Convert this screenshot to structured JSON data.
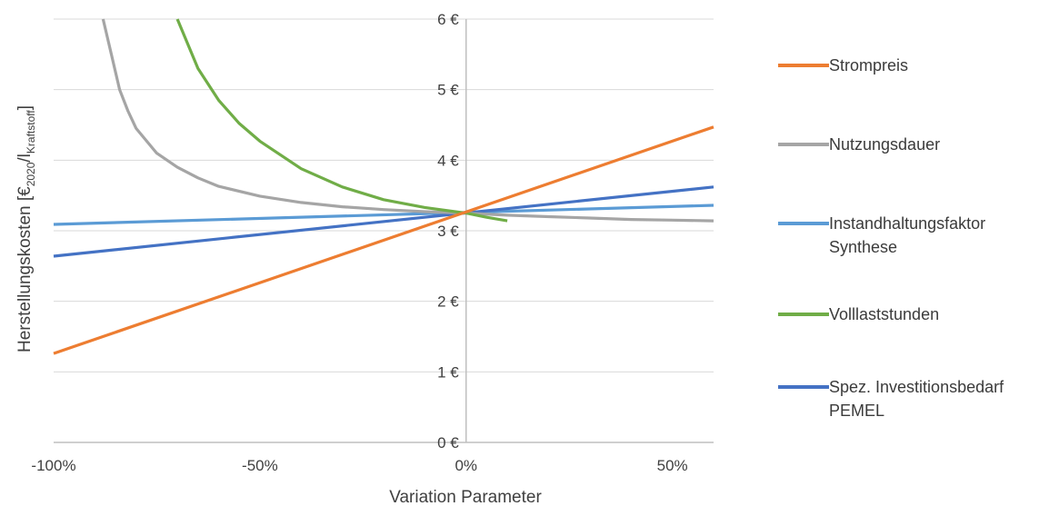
{
  "chart_data": {
    "type": "line",
    "title": "",
    "xlabel": "Variation Parameter",
    "ylabel_main": "Herstellungskosten [€",
    "ylabel_sub1": "2020",
    "ylabel_mid": "/l",
    "ylabel_sub2": "Kraftstoff",
    "ylabel_end": "]",
    "xlim": [
      -100,
      60
    ],
    "ylim": [
      0,
      6
    ],
    "x_ticks": [
      {
        "value": -100,
        "label": "-100%"
      },
      {
        "value": -50,
        "label": "-50%"
      },
      {
        "value": 0,
        "label": "0%"
      },
      {
        "value": 50,
        "label": "50%"
      }
    ],
    "y_ticks": [
      {
        "value": 0,
        "label": "0 €"
      },
      {
        "value": 1,
        "label": "1 €"
      },
      {
        "value": 2,
        "label": "2 €"
      },
      {
        "value": 3,
        "label": "3 €"
      },
      {
        "value": 4,
        "label": "4 €"
      },
      {
        "value": 5,
        "label": "5 €"
      },
      {
        "value": 6,
        "label": "6 €"
      }
    ],
    "grid": "horizontal",
    "legend_position": "right",
    "series": [
      {
        "name": "Strompreis",
        "color": "#ED7D31",
        "x": [
          -100,
          60
        ],
        "y": [
          1.26,
          4.47
        ]
      },
      {
        "name": "Nutzungsdauer",
        "color": "#A5A5A5",
        "x": [
          -88,
          -86,
          -84,
          -82,
          -80,
          -75,
          -70,
          -65,
          -60,
          -50,
          -40,
          -30,
          -20,
          -10,
          0,
          10,
          20,
          30,
          40,
          50,
          60
        ],
        "y": [
          6.0,
          5.5,
          5.0,
          4.7,
          4.45,
          4.1,
          3.9,
          3.75,
          3.63,
          3.49,
          3.4,
          3.34,
          3.3,
          3.27,
          3.25,
          3.22,
          3.2,
          3.18,
          3.16,
          3.15,
          3.14
        ]
      },
      {
        "name": "Instandhaltungsfaktor Synthese",
        "color": "#5B9BD5",
        "x": [
          -100,
          60
        ],
        "y": [
          3.09,
          3.36
        ]
      },
      {
        "name": "Volllaststunden",
        "color": "#70AD47",
        "x": [
          -70,
          -65,
          -60,
          -55,
          -50,
          -40,
          -30,
          -20,
          -10,
          0,
          5,
          10
        ],
        "y": [
          6.0,
          5.3,
          4.85,
          4.52,
          4.27,
          3.88,
          3.62,
          3.44,
          3.33,
          3.25,
          3.19,
          3.14
        ]
      },
      {
        "name": "Spez. Investitionsbedarf PEMEL",
        "color": "#4472C4",
        "x": [
          -100,
          60
        ],
        "y": [
          2.64,
          3.62
        ]
      }
    ]
  },
  "legend": {
    "items": [
      {
        "lines": [
          "Strompreis"
        ],
        "color": "#ED7D31"
      },
      {
        "lines": [
          "Nutzungsdauer"
        ],
        "color": "#A5A5A5"
      },
      {
        "lines": [
          "Instandhaltungsfaktor",
          "Synthese"
        ],
        "color": "#5B9BD5"
      },
      {
        "lines": [
          "Volllaststunden"
        ],
        "color": "#70AD47"
      },
      {
        "lines": [
          "Spez. Investitionsbedarf",
          "PEMEL"
        ],
        "color": "#4472C4"
      }
    ]
  }
}
